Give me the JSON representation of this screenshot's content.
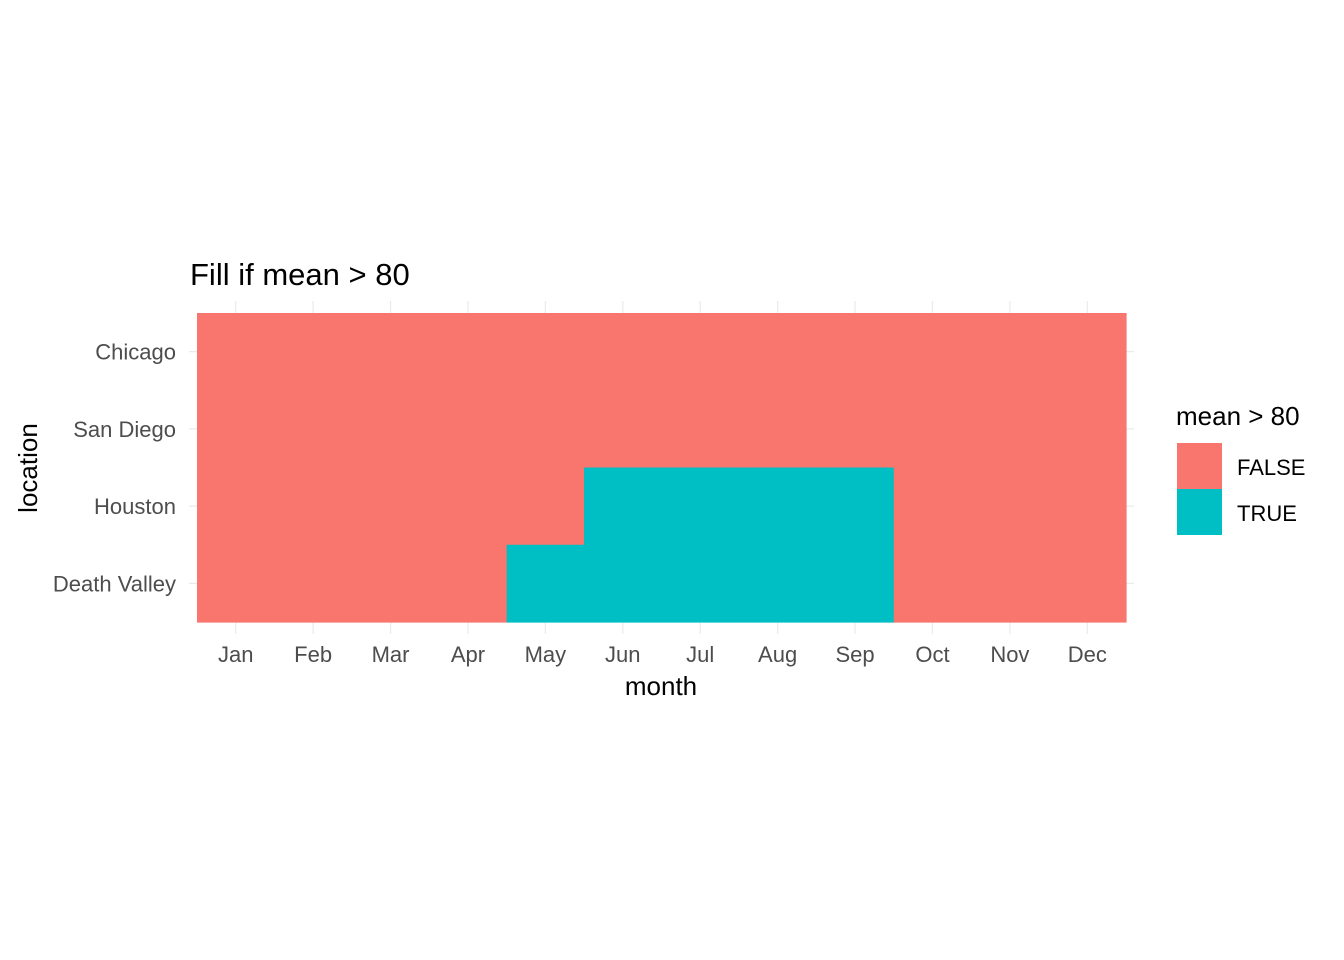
{
  "chart_data": {
    "type": "heatmap",
    "title": "Fill if mean > 80",
    "xlabel": "month",
    "ylabel": "location",
    "x": [
      "Jan",
      "Feb",
      "Mar",
      "Apr",
      "May",
      "Jun",
      "Jul",
      "Aug",
      "Sep",
      "Oct",
      "Nov",
      "Dec"
    ],
    "y": [
      "Chicago",
      "San Diego",
      "Houston",
      "Death Valley"
    ],
    "values": [
      [
        false,
        false,
        false,
        false,
        false,
        false,
        false,
        false,
        false,
        false,
        false,
        false
      ],
      [
        false,
        false,
        false,
        false,
        false,
        false,
        false,
        false,
        false,
        false,
        false,
        false
      ],
      [
        false,
        false,
        false,
        false,
        false,
        true,
        true,
        true,
        true,
        false,
        false,
        false
      ],
      [
        false,
        false,
        false,
        false,
        true,
        true,
        true,
        true,
        true,
        false,
        false,
        false
      ]
    ],
    "legend": {
      "title": "mean > 80",
      "placement": "right",
      "entries": [
        {
          "label": "FALSE",
          "color": "#F8766D"
        },
        {
          "label": "TRUE",
          "color": "#00BFC4"
        }
      ]
    },
    "grid": true
  }
}
